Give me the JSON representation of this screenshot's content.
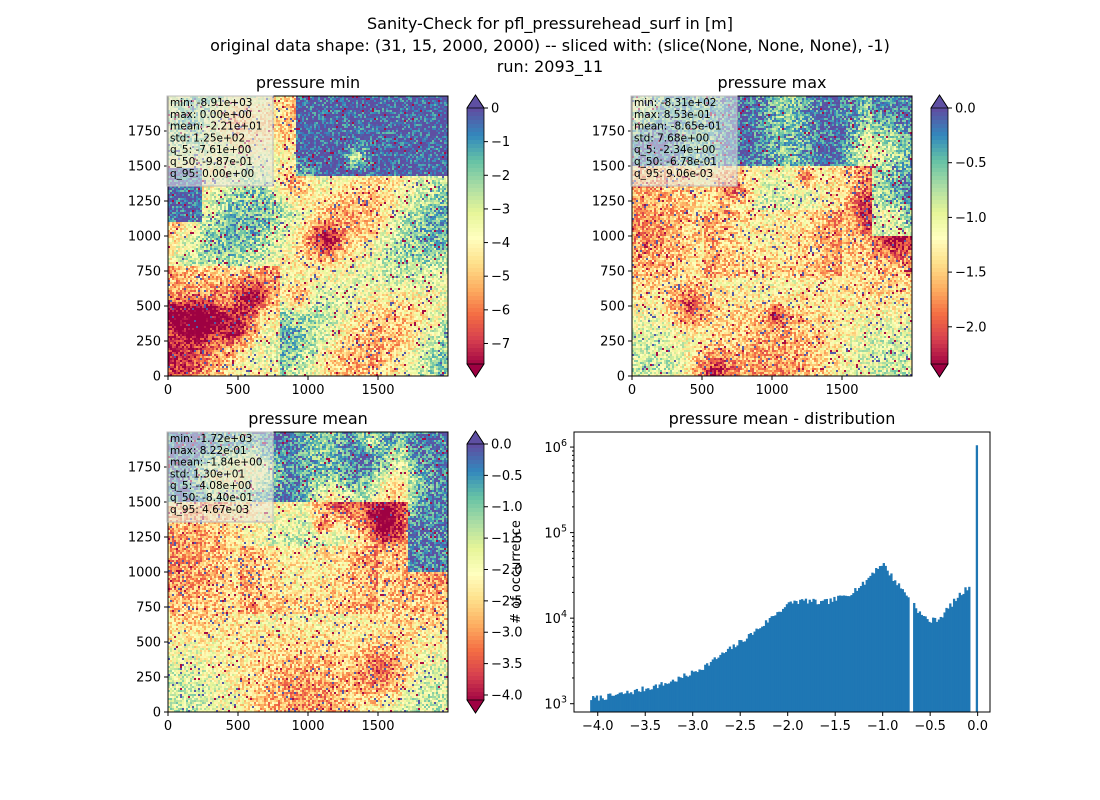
{
  "figure": {
    "title_lines": [
      "Sanity-Check for pfl_pressurehead_surf in [m]",
      "original data shape: (31, 15, 2000, 2000) -- sliced with: (slice(None, None, None), -1)",
      "run: 2093_11"
    ]
  },
  "colors": {
    "spectral": [
      "#9e0142",
      "#d53e4f",
      "#f46d43",
      "#fdae61",
      "#fee08b",
      "#ffffbf",
      "#e6f598",
      "#abdda4",
      "#66c2a5",
      "#3288bd",
      "#5e4fa2"
    ],
    "over": "#5e4fa2",
    "under": "#9e0142",
    "hist_bar": "#1f77b4"
  },
  "panels": [
    {
      "id": "min",
      "title": "pressure min",
      "xticks": [
        "0",
        "500",
        "1000",
        "1500"
      ],
      "yticks": [
        "0",
        "250",
        "500",
        "750",
        "1000",
        "1250",
        "1500",
        "1750"
      ],
      "stats": [
        "min: -8.91e+03",
        "max: 0.00e+00",
        "mean: -2.21e+01",
        "std: 1.25e+02",
        "q_5: -7.61e+00",
        "q_50: -9.87e-01",
        "q_95: 0.00e+00"
      ],
      "colorbar": {
        "vmin": -7.61,
        "vmax": 0.0,
        "ticks": [
          0,
          -1,
          -2,
          -3,
          -4,
          -5,
          -6,
          -7
        ],
        "tick_labels": [
          "0",
          "−1",
          "−2",
          "−3",
          "−4",
          "−5",
          "−6",
          "−7"
        ]
      }
    },
    {
      "id": "max",
      "title": "pressure max",
      "xticks": [
        "0",
        "500",
        "1000",
        "1500"
      ],
      "yticks": [
        "0",
        "250",
        "500",
        "750",
        "1000",
        "1250",
        "1500",
        "1750"
      ],
      "stats": [
        "min: -8.31e+02",
        "max: 8.53e-01",
        "mean: -8.65e-01",
        "std: 7.68e+00",
        "q_5: -2.34e+00",
        "q_50: -6.78e-01",
        "q_95: 9.06e-03"
      ],
      "colorbar": {
        "vmin": -2.34,
        "vmax": 0.0,
        "ticks": [
          0.0,
          -0.5,
          -1.0,
          -1.5,
          -2.0
        ],
        "tick_labels": [
          "0.0",
          "−0.5",
          "−1.0",
          "−1.5",
          "−2.0"
        ]
      }
    },
    {
      "id": "mean",
      "title": "pressure mean",
      "xticks": [
        "0",
        "500",
        "1000",
        "1500"
      ],
      "yticks": [
        "0",
        "250",
        "500",
        "750",
        "1000",
        "1250",
        "1500",
        "1750"
      ],
      "stats": [
        "min: -1.72e+03",
        "max: 8.22e-01",
        "mean: -1.84e+00",
        "std: 1.30e+01",
        "q_5: -4.08e+00",
        "q_50: -8.40e-01",
        "q_95: 4.67e-03"
      ],
      "colorbar": {
        "vmin": -4.08,
        "vmax": 0.0,
        "ticks": [
          0.0,
          -0.5,
          -1.0,
          -1.5,
          -2.0,
          -2.5,
          -3.0,
          -3.5,
          -4.0
        ],
        "tick_labels": [
          "0.0",
          "−0.5",
          "−1.0",
          "−1.5",
          "−2.0",
          "−2.5",
          "−3.0",
          "−3.5",
          "−4.0"
        ]
      }
    }
  ],
  "chart_data": [
    {
      "type": "heatmap",
      "title": "pressure min",
      "x_range": [
        0,
        2000
      ],
      "y_range": [
        0,
        2000
      ],
      "color_range": [
        -7.61,
        0.0
      ],
      "colormap": "Spectral",
      "extend": "both"
    },
    {
      "type": "heatmap",
      "title": "pressure max",
      "x_range": [
        0,
        2000
      ],
      "y_range": [
        0,
        2000
      ],
      "color_range": [
        -2.34,
        0.0
      ],
      "colormap": "Spectral",
      "extend": "both"
    },
    {
      "type": "heatmap",
      "title": "pressure mean",
      "x_range": [
        0,
        2000
      ],
      "y_range": [
        0,
        2000
      ],
      "color_range": [
        -4.08,
        0.0
      ],
      "colormap": "Spectral",
      "extend": "both"
    },
    {
      "type": "bar",
      "title": "pressure mean - distribution",
      "ylabel": "# of occurrence",
      "yscale": "log",
      "xlim": [
        -4.25,
        0.13
      ],
      "ylim": [
        800,
        1500000
      ],
      "xtick_labels": [
        "−4.0",
        "−3.5",
        "−3.0",
        "−2.5",
        "−2.0",
        "−1.5",
        "−1.0",
        "−0.5",
        "0.0"
      ],
      "xtick_values": [
        -4.0,
        -3.5,
        -3.0,
        -2.5,
        -2.0,
        -1.5,
        -1.0,
        -0.5,
        0.0
      ],
      "ytick_labels": [
        "10^3",
        "10^4",
        "10^5",
        "10^6"
      ],
      "ytick_values": [
        1000,
        10000,
        100000,
        1000000
      ],
      "x": [
        -4.05,
        -3.9,
        -3.75,
        -3.6,
        -3.45,
        -3.3,
        -3.15,
        -3.0,
        -2.85,
        -2.7,
        -2.55,
        -2.4,
        -2.25,
        -2.1,
        -1.95,
        -1.8,
        -1.65,
        -1.5,
        -1.35,
        -1.2,
        -1.1,
        -1.0,
        -0.9,
        -0.8,
        -0.7,
        -0.6,
        -0.5,
        -0.4,
        -0.3,
        -0.2,
        -0.1,
        -0.03,
        -0.01
      ],
      "values": [
        1150,
        1200,
        1300,
        1400,
        1550,
        1700,
        1950,
        2300,
        2850,
        3700,
        4800,
        6300,
        8500,
        12000,
        15500,
        16000,
        15000,
        16500,
        19500,
        25000,
        35000,
        44000,
        30000,
        22000,
        16500,
        11000,
        9200,
        10000,
        13500,
        18000,
        23000,
        30000,
        1050000
      ],
      "gap_at": -0.7
    }
  ]
}
